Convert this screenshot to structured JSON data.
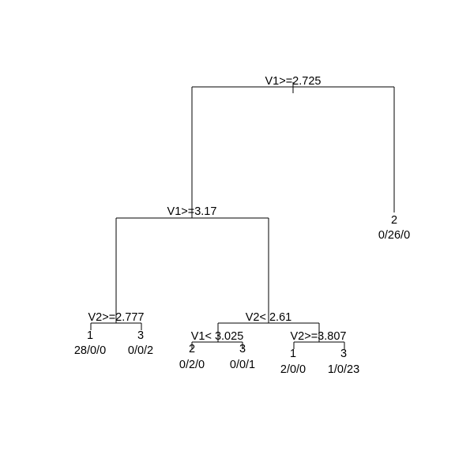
{
  "tree": {
    "line_color": "#000000",
    "background": "#ffffff",
    "root": {
      "split": "V1>=2.725",
      "left": {
        "split": "V1>=3.17",
        "left": {
          "split": "V2>=2.777",
          "left": {
            "class": "1",
            "counts": "28/0/0"
          },
          "right": {
            "class": "3",
            "counts": "0/0/2"
          }
        },
        "right": {
          "split": "V2< 2.61",
          "left": {
            "split": "V1< 3.025",
            "left": {
              "class": "2",
              "counts": "0/2/0"
            },
            "right": {
              "class": "3",
              "counts": "0/0/1"
            }
          },
          "right": {
            "split": "V2>=3.807",
            "left": {
              "class": "1",
              "counts": "2/0/0"
            },
            "right": {
              "class": "3",
              "counts": "1/0/23"
            }
          }
        }
      },
      "right": {
        "class": "2",
        "counts": "0/26/0"
      }
    }
  }
}
